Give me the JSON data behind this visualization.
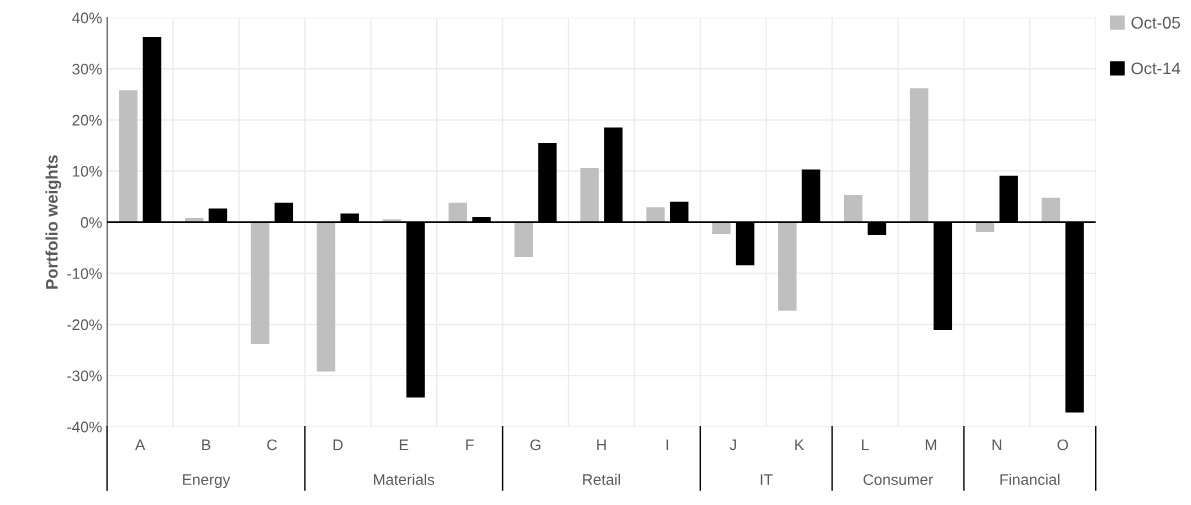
{
  "chart_data": {
    "type": "bar",
    "ylabel": "Portfolio weights",
    "categories": [
      "A",
      "B",
      "C",
      "D",
      "E",
      "F",
      "G",
      "H",
      "I",
      "J",
      "K",
      "L",
      "M",
      "N",
      "O"
    ],
    "series": [
      {
        "name": "Oct-05",
        "color": "#bfbfbf",
        "values": [
          25.8,
          0.8,
          -23.8,
          -29.2,
          0.6,
          3.8,
          -6.8,
          10.6,
          2.9,
          -2.3,
          -17.3,
          5.3,
          26.2,
          -1.9,
          4.8
        ]
      },
      {
        "name": "Oct-14",
        "color": "#000000",
        "values": [
          36.2,
          2.7,
          3.8,
          1.7,
          -34.3,
          1.0,
          15.5,
          18.5,
          4.0,
          -8.4,
          10.3,
          -2.5,
          -21.1,
          9.1,
          -37.2
        ]
      }
    ],
    "ylim": [
      -40,
      40
    ],
    "yticks": [
      {
        "value": -40,
        "label": "-40%"
      },
      {
        "value": -30,
        "label": "-30%"
      },
      {
        "value": -20,
        "label": "-20%"
      },
      {
        "value": -10,
        "label": "-10%"
      },
      {
        "value": 0,
        "label": "0%"
      },
      {
        "value": 10,
        "label": "10%"
      },
      {
        "value": 20,
        "label": "20%"
      },
      {
        "value": 30,
        "label": "30%"
      },
      {
        "value": 40,
        "label": "40%"
      }
    ],
    "annotations": [
      "Energy",
      "Materials",
      "Retail",
      "IT",
      "Consumer",
      "Financial"
    ],
    "grid": true,
    "legend": "top right"
  }
}
